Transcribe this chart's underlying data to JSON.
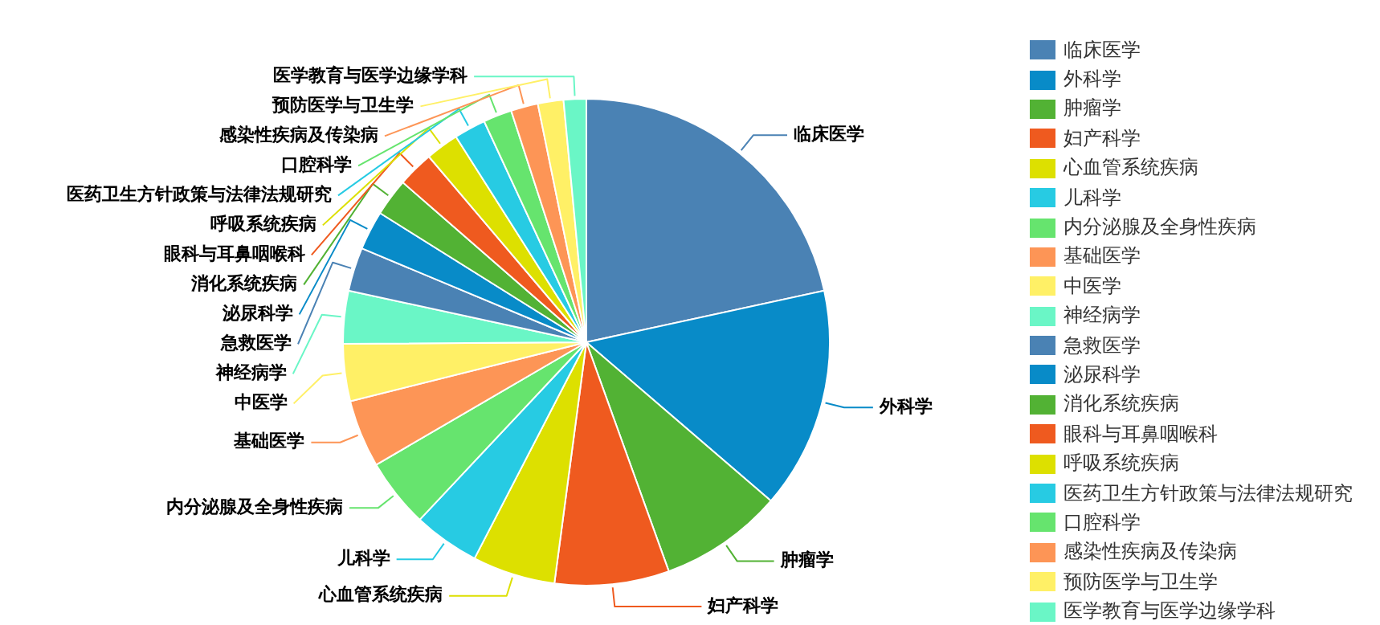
{
  "chart_data": {
    "type": "pie",
    "categories": [
      "临床医学",
      "外科学",
      "肿瘤学",
      "妇产科学",
      "心血管系统疾病",
      "儿科学",
      "内分泌腺及全身性疾病",
      "基础医学",
      "中医学",
      "神经病学",
      "急救医学",
      "泌尿科学",
      "消化系统疾病",
      "眼科与耳鼻咽喉科",
      "呼吸系统疾病",
      "医药卫生方针政策与法律法规研究",
      "口腔科学",
      "感染性疾病及传染病",
      "预防医学与卫生学",
      "医学教育与医学边缘学科"
    ],
    "values": [
      21.6,
      14.7,
      8.2,
      7.6,
      5.5,
      4.4,
      4.6,
      4.5,
      3.8,
      3.5,
      2.9,
      2.6,
      2.5,
      2.4,
      2.2,
      2.1,
      1.9,
      1.8,
      1.7,
      1.5
    ],
    "colors": [
      "#4a82b4",
      "#088bc8",
      "#52b234",
      "#ef5a1f",
      "#dde000",
      "#27cbe3",
      "#66e46e",
      "#fd9556",
      "#fff066",
      "#6af6c6",
      "#4a82b4",
      "#088bc8",
      "#52b234",
      "#ef5a1f",
      "#dde000",
      "#27cbe3",
      "#66e46e",
      "#fd9556",
      "#fff066",
      "#6af6c6"
    ],
    "legend": "right"
  }
}
